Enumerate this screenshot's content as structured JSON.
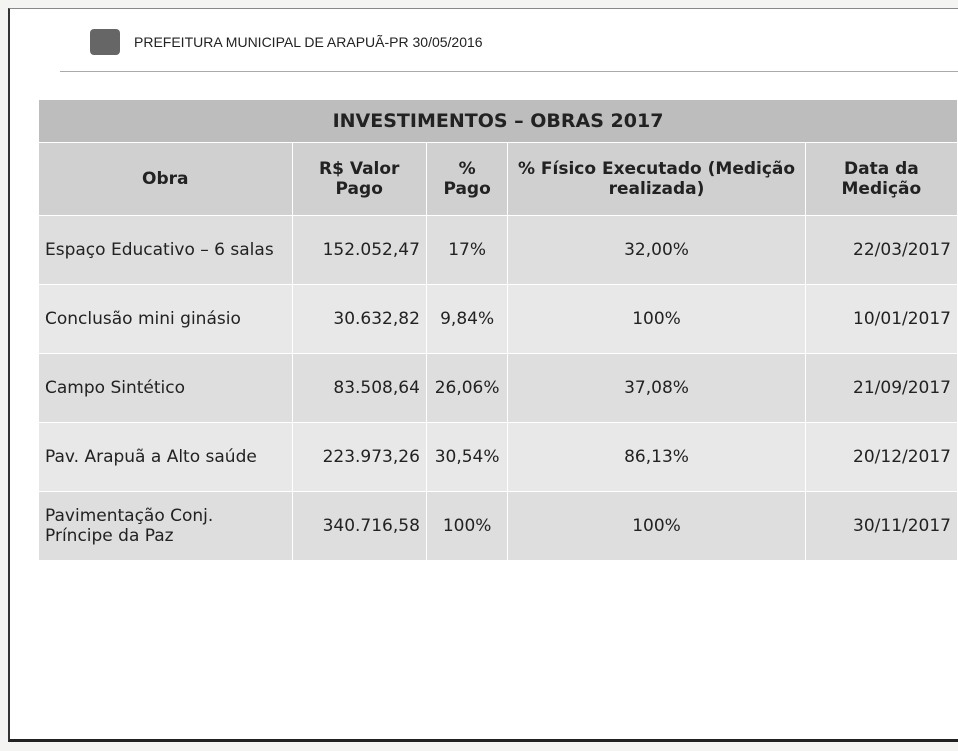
{
  "header": {
    "title": "PREFEITURA MUNICIPAL DE ARAPUÃ-PR 30/05/2016"
  },
  "table": {
    "title": "INVESTIMENTOS – OBRAS 2017",
    "columns": [
      "Obra",
      "R$ Valor Pago",
      "% Pago",
      "% Físico Executado (Medição realizada)",
      "Data da Medição"
    ],
    "rows": [
      [
        "Espaço Educativo – 6 salas",
        "152.052,47",
        "17%",
        "32,00%",
        "22/03/2017"
      ],
      [
        "Conclusão mini ginásio",
        "30.632,82",
        "9,84%",
        "100%",
        "10/01/2017"
      ],
      [
        "Campo Sintético",
        "83.508,64",
        "26,06%",
        "37,08%",
        "21/09/2017"
      ],
      [
        "Pav. Arapuã a Alto saúde",
        "223.973,26",
        "30,54%",
        "86,13%",
        "20/12/2017"
      ],
      [
        "Pavimentação Conj. Príncipe da Paz",
        "340.716,58",
        "100%",
        "100%",
        "30/11/2017"
      ]
    ]
  }
}
